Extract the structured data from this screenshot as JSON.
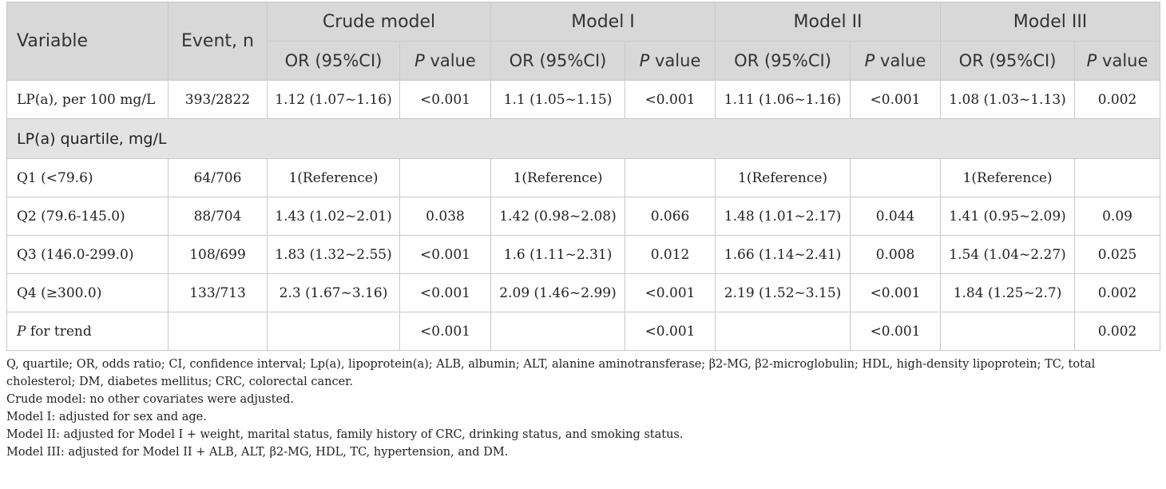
{
  "header": {
    "variable": "Variable",
    "event": "Event, n",
    "groups": [
      "Crude model",
      "Model I",
      "Model II",
      "Model III"
    ],
    "or_label": "OR (95%CI)",
    "p_italic": "P",
    "p_rest": " value"
  },
  "rows_top": [
    {
      "label": "LP(a), per 100 mg/L",
      "event": "393/2822",
      "cells": [
        "1.12 (1.07~1.16)",
        "<0.001",
        "1.1 (1.05~1.15)",
        "<0.001",
        "1.11 (1.06~1.16)",
        "<0.001",
        "1.08 (1.03~1.13)",
        "0.002"
      ]
    }
  ],
  "section": "LP(a) quartile, mg/L",
  "rows": [
    {
      "label": "Q1 (<79.6)",
      "event": "64/706",
      "cells": [
        "1(Reference)",
        "",
        "1(Reference)",
        "",
        "1(Reference)",
        "",
        "1(Reference)",
        ""
      ]
    },
    {
      "label": "Q2 (79.6-145.0)",
      "event": "88/704",
      "cells": [
        "1.43 (1.02~2.01)",
        "0.038",
        "1.42 (0.98~2.08)",
        "0.066",
        "1.48 (1.01~2.17)",
        "0.044",
        "1.41 (0.95~2.09)",
        "0.09"
      ]
    },
    {
      "label": "Q3 (146.0-299.0)",
      "event": "108/699",
      "cells": [
        "1.83 (1.32~2.55)",
        "<0.001",
        "1.6 (1.11~2.31)",
        "0.012",
        "1.66 (1.14~2.41)",
        "0.008",
        "1.54 (1.04~2.27)",
        "0.025"
      ]
    },
    {
      "label": "Q4 (≥300.0)",
      "event": "133/713",
      "cells": [
        "2.3 (1.67~3.16)",
        "<0.001",
        "2.09 (1.46~2.99)",
        "<0.001",
        "2.19 (1.52~3.15)",
        "<0.001",
        "1.84 (1.25~2.7)",
        "0.002"
      ]
    }
  ],
  "trend": {
    "label_italic": "P",
    "label_rest": " for trend",
    "cells": [
      "",
      "<0.001",
      "",
      "<0.001",
      "",
      "<0.001",
      "",
      "0.002"
    ]
  },
  "notes": [
    "Q, quartile; OR, odds ratio; CI, confidence interval; Lp(a), lipoprotein(a); ALB, albumin; ALT, alanine aminotransferase; β2-MG, β2-microglobulin; HDL, high-density lipoprotein; TC, total cholesterol; DM, diabetes mellitus; CRC, colorectal cancer.",
    "Crude model: no other covariates were adjusted.",
    "Model I: adjusted for sex and age.",
    "Model II: adjusted for Model I + weight, marital status, family history of CRC, drinking status, and smoking status.",
    "Model III: adjusted for Model II + ALB, ALT, β2-MG, HDL, TC, hypertension, and DM."
  ]
}
